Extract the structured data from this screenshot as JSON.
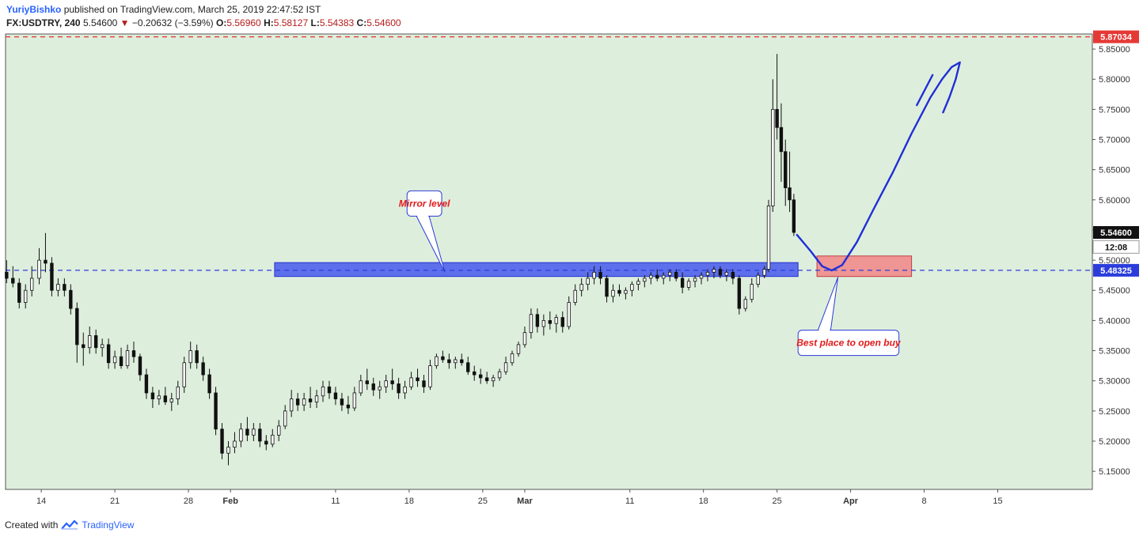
{
  "header": {
    "author": "YuriyBishko",
    "published": "published on TradingView.com, March 25, 2019 22:47:52 IST",
    "symbol": "FX:USDTRY, 240",
    "last": "5.54600",
    "change": "−0.20632 (−3.59%)",
    "o_label": "O:",
    "o_value": "5.56960",
    "h_label": "H:",
    "h_value": "5.58127",
    "l_label": "L:",
    "l_value": "5.54383",
    "c_label": "C:",
    "c_value": "5.54600"
  },
  "footer": {
    "created_with": "Created with",
    "brand": "TradingView"
  },
  "colors": {
    "background": "#deeedd",
    "candle": "#111111",
    "support_zone": "#3d4ff0",
    "buy_zone": "#ef8f8f",
    "red_line": "#e53935",
    "blue_line": "#2a3ddb",
    "arrow": "#1f2fd6"
  },
  "chart_data": {
    "type": "candlestick",
    "ylim": [
      5.12,
      5.875
    ],
    "y_ticks": [
      "5.15000",
      "5.20000",
      "5.25000",
      "5.30000",
      "5.35000",
      "5.40000",
      "5.45000",
      "5.50000",
      "5.55000",
      "5.60000",
      "5.65000",
      "5.70000",
      "5.75000",
      "5.80000",
      "5.85000"
    ],
    "x_ticks": [
      {
        "label": "14",
        "day": 14,
        "bold": false
      },
      {
        "label": "21",
        "day": 21,
        "bold": false
      },
      {
        "label": "28",
        "day": 28,
        "bold": false
      },
      {
        "label": "Feb",
        "day": 32,
        "bold": true
      },
      {
        "label": "11",
        "day": 42,
        "bold": false
      },
      {
        "label": "18",
        "day": 49,
        "bold": false
      },
      {
        "label": "25",
        "day": 56,
        "bold": false
      },
      {
        "label": "Mar",
        "day": 60,
        "bold": true
      },
      {
        "label": "11",
        "day": 70,
        "bold": false
      },
      {
        "label": "18",
        "day": 77,
        "bold": false
      },
      {
        "label": "25",
        "day": 84,
        "bold": false
      },
      {
        "label": "Apr",
        "day": 91,
        "bold": true
      },
      {
        "label": "8",
        "day": 98,
        "bold": false
      },
      {
        "label": "15",
        "day": 105,
        "bold": false
      }
    ],
    "x_day_range": [
      10.6,
      114.0
    ],
    "price_labels": [
      {
        "name": "resistance-price-label",
        "value": "5.87034",
        "price": 5.87034,
        "style": "red"
      },
      {
        "name": "last-price-label",
        "value": "5.54600",
        "price": 5.546,
        "style": "dark"
      },
      {
        "name": "countdown-label",
        "value": "12:08",
        "price": 5.522,
        "style": "dark-plain"
      },
      {
        "name": "support-price-label",
        "value": "5.48325",
        "price": 5.48325,
        "style": "blue"
      }
    ],
    "resistance_level": 5.87034,
    "mirror_level": 5.48325,
    "support_zone": {
      "day_from": 36.2,
      "day_to": 86.0,
      "price_high": 5.496,
      "price_low": 5.473
    },
    "buy_zone": {
      "day_from": 87.8,
      "day_to": 96.8,
      "price_high": 5.507,
      "price_low": 5.473
    },
    "callouts": [
      {
        "name": "mirror-level-callout",
        "text": "Mirror level",
        "day_from": 48.8,
        "day_to": 52.1,
        "price_top": 5.615,
        "price_bottom": 5.573,
        "tail_day": 50.3,
        "tip_day": 52.4,
        "tip_price": 5.48
      },
      {
        "name": "best-buy-callout",
        "text": "Best place to open buy",
        "day_from": 86.0,
        "day_to": 95.6,
        "price_top": 5.384,
        "price_bottom": 5.342,
        "tail_day": 88.5,
        "tip_day": 89.8,
        "tip_price": 5.472
      }
    ],
    "projection_path": [
      [
        85.9,
        5.542
      ],
      [
        87.2,
        5.515
      ],
      [
        88.3,
        5.49
      ],
      [
        89.2,
        5.483
      ],
      [
        90.2,
        5.492
      ],
      [
        91.6,
        5.53
      ],
      [
        93.2,
        5.585
      ],
      [
        95.0,
        5.645
      ],
      [
        96.8,
        5.71
      ],
      [
        98.6,
        5.77
      ],
      [
        99.7,
        5.8
      ],
      [
        100.6,
        5.82
      ],
      [
        101.4,
        5.828
      ],
      [
        101.0,
        5.8
      ],
      [
        100.4,
        5.77
      ],
      [
        99.8,
        5.745
      ]
    ],
    "projection_tick": [
      [
        98.8,
        5.807
      ],
      [
        97.3,
        5.757
      ]
    ],
    "series": [
      {
        "day": 10.7,
        "o": 5.48,
        "h": 5.5,
        "l": 5.462,
        "c": 5.47
      },
      {
        "day": 11.3,
        "o": 5.47,
        "h": 5.49,
        "l": 5.455,
        "c": 5.462
      },
      {
        "day": 11.9,
        "o": 5.462,
        "h": 5.47,
        "l": 5.42,
        "c": 5.43
      },
      {
        "day": 12.5,
        "o": 5.43,
        "h": 5.46,
        "l": 5.42,
        "c": 5.45
      },
      {
        "day": 13.1,
        "o": 5.45,
        "h": 5.49,
        "l": 5.44,
        "c": 5.47
      },
      {
        "day": 13.8,
        "o": 5.47,
        "h": 5.52,
        "l": 5.46,
        "c": 5.5
      },
      {
        "day": 14.4,
        "o": 5.5,
        "h": 5.545,
        "l": 5.48,
        "c": 5.495
      },
      {
        "day": 15.0,
        "o": 5.495,
        "h": 5.505,
        "l": 5.44,
        "c": 5.45
      },
      {
        "day": 15.6,
        "o": 5.45,
        "h": 5.47,
        "l": 5.44,
        "c": 5.46
      },
      {
        "day": 16.2,
        "o": 5.46,
        "h": 5.47,
        "l": 5.44,
        "c": 5.45
      },
      {
        "day": 16.8,
        "o": 5.45,
        "h": 5.46,
        "l": 5.41,
        "c": 5.42
      },
      {
        "day": 17.4,
        "o": 5.42,
        "h": 5.43,
        "l": 5.33,
        "c": 5.36
      },
      {
        "day": 18.0,
        "o": 5.36,
        "h": 5.38,
        "l": 5.325,
        "c": 5.355
      },
      {
        "day": 18.6,
        "o": 5.355,
        "h": 5.39,
        "l": 5.345,
        "c": 5.375
      },
      {
        "day": 19.2,
        "o": 5.375,
        "h": 5.385,
        "l": 5.345,
        "c": 5.355
      },
      {
        "day": 19.8,
        "o": 5.355,
        "h": 5.37,
        "l": 5.34,
        "c": 5.36
      },
      {
        "day": 20.4,
        "o": 5.36,
        "h": 5.37,
        "l": 5.32,
        "c": 5.33
      },
      {
        "day": 21.0,
        "o": 5.33,
        "h": 5.35,
        "l": 5.32,
        "c": 5.34
      },
      {
        "day": 21.6,
        "o": 5.34,
        "h": 5.355,
        "l": 5.32,
        "c": 5.325
      },
      {
        "day": 22.2,
        "o": 5.325,
        "h": 5.36,
        "l": 5.32,
        "c": 5.35
      },
      {
        "day": 22.8,
        "o": 5.35,
        "h": 5.365,
        "l": 5.33,
        "c": 5.34
      },
      {
        "day": 23.4,
        "o": 5.34,
        "h": 5.345,
        "l": 5.3,
        "c": 5.31
      },
      {
        "day": 24.0,
        "o": 5.31,
        "h": 5.32,
        "l": 5.27,
        "c": 5.28
      },
      {
        "day": 24.6,
        "o": 5.28,
        "h": 5.29,
        "l": 5.255,
        "c": 5.27
      },
      {
        "day": 25.2,
        "o": 5.27,
        "h": 5.285,
        "l": 5.26,
        "c": 5.275
      },
      {
        "day": 25.8,
        "o": 5.275,
        "h": 5.29,
        "l": 5.26,
        "c": 5.265
      },
      {
        "day": 26.4,
        "o": 5.265,
        "h": 5.28,
        "l": 5.25,
        "c": 5.27
      },
      {
        "day": 27.0,
        "o": 5.27,
        "h": 5.3,
        "l": 5.26,
        "c": 5.29
      },
      {
        "day": 27.6,
        "o": 5.29,
        "h": 5.34,
        "l": 5.28,
        "c": 5.33
      },
      {
        "day": 28.2,
        "o": 5.33,
        "h": 5.365,
        "l": 5.32,
        "c": 5.35
      },
      {
        "day": 28.8,
        "o": 5.35,
        "h": 5.36,
        "l": 5.32,
        "c": 5.33
      },
      {
        "day": 29.4,
        "o": 5.33,
        "h": 5.34,
        "l": 5.3,
        "c": 5.31
      },
      {
        "day": 30.0,
        "o": 5.31,
        "h": 5.32,
        "l": 5.27,
        "c": 5.28
      },
      {
        "day": 30.6,
        "o": 5.28,
        "h": 5.29,
        "l": 5.21,
        "c": 5.22
      },
      {
        "day": 31.2,
        "o": 5.22,
        "h": 5.23,
        "l": 5.17,
        "c": 5.18
      },
      {
        "day": 31.8,
        "o": 5.18,
        "h": 5.2,
        "l": 5.16,
        "c": 5.19
      },
      {
        "day": 32.4,
        "o": 5.19,
        "h": 5.215,
        "l": 5.18,
        "c": 5.2
      },
      {
        "day": 33.0,
        "o": 5.2,
        "h": 5.23,
        "l": 5.19,
        "c": 5.22
      },
      {
        "day": 33.6,
        "o": 5.22,
        "h": 5.24,
        "l": 5.2,
        "c": 5.21
      },
      {
        "day": 34.2,
        "o": 5.21,
        "h": 5.23,
        "l": 5.2,
        "c": 5.22
      },
      {
        "day": 34.8,
        "o": 5.22,
        "h": 5.23,
        "l": 5.19,
        "c": 5.2
      },
      {
        "day": 35.4,
        "o": 5.2,
        "h": 5.21,
        "l": 5.185,
        "c": 5.195
      },
      {
        "day": 36.0,
        "o": 5.195,
        "h": 5.22,
        "l": 5.19,
        "c": 5.21
      },
      {
        "day": 36.6,
        "o": 5.21,
        "h": 5.235,
        "l": 5.2,
        "c": 5.225
      },
      {
        "day": 37.2,
        "o": 5.225,
        "h": 5.26,
        "l": 5.22,
        "c": 5.25
      },
      {
        "day": 37.8,
        "o": 5.25,
        "h": 5.285,
        "l": 5.24,
        "c": 5.27
      },
      {
        "day": 38.4,
        "o": 5.27,
        "h": 5.28,
        "l": 5.25,
        "c": 5.26
      },
      {
        "day": 39.0,
        "o": 5.26,
        "h": 5.28,
        "l": 5.25,
        "c": 5.27
      },
      {
        "day": 39.6,
        "o": 5.27,
        "h": 5.29,
        "l": 5.255,
        "c": 5.265
      },
      {
        "day": 40.2,
        "o": 5.265,
        "h": 5.285,
        "l": 5.255,
        "c": 5.275
      },
      {
        "day": 40.8,
        "o": 5.275,
        "h": 5.3,
        "l": 5.265,
        "c": 5.29
      },
      {
        "day": 41.4,
        "o": 5.29,
        "h": 5.3,
        "l": 5.27,
        "c": 5.28
      },
      {
        "day": 42.0,
        "o": 5.28,
        "h": 5.29,
        "l": 5.26,
        "c": 5.27
      },
      {
        "day": 42.6,
        "o": 5.27,
        "h": 5.28,
        "l": 5.25,
        "c": 5.26
      },
      {
        "day": 43.2,
        "o": 5.26,
        "h": 5.275,
        "l": 5.245,
        "c": 5.255
      },
      {
        "day": 43.8,
        "o": 5.255,
        "h": 5.29,
        "l": 5.25,
        "c": 5.28
      },
      {
        "day": 44.4,
        "o": 5.28,
        "h": 5.31,
        "l": 5.275,
        "c": 5.3
      },
      {
        "day": 45.0,
        "o": 5.3,
        "h": 5.32,
        "l": 5.285,
        "c": 5.295
      },
      {
        "day": 45.6,
        "o": 5.295,
        "h": 5.305,
        "l": 5.275,
        "c": 5.285
      },
      {
        "day": 46.2,
        "o": 5.285,
        "h": 5.3,
        "l": 5.27,
        "c": 5.29
      },
      {
        "day": 46.8,
        "o": 5.29,
        "h": 5.31,
        "l": 5.28,
        "c": 5.3
      },
      {
        "day": 47.4,
        "o": 5.3,
        "h": 5.32,
        "l": 5.285,
        "c": 5.295
      },
      {
        "day": 48.0,
        "o": 5.295,
        "h": 5.305,
        "l": 5.27,
        "c": 5.28
      },
      {
        "day": 48.6,
        "o": 5.28,
        "h": 5.3,
        "l": 5.27,
        "c": 5.29
      },
      {
        "day": 49.2,
        "o": 5.29,
        "h": 5.315,
        "l": 5.285,
        "c": 5.305
      },
      {
        "day": 49.8,
        "o": 5.305,
        "h": 5.32,
        "l": 5.29,
        "c": 5.3
      },
      {
        "day": 50.4,
        "o": 5.3,
        "h": 5.31,
        "l": 5.28,
        "c": 5.29
      },
      {
        "day": 51.0,
        "o": 5.29,
        "h": 5.335,
        "l": 5.285,
        "c": 5.325
      },
      {
        "day": 51.6,
        "o": 5.325,
        "h": 5.345,
        "l": 5.32,
        "c": 5.34
      },
      {
        "day": 52.2,
        "o": 5.34,
        "h": 5.35,
        "l": 5.33,
        "c": 5.335
      },
      {
        "day": 52.8,
        "o": 5.335,
        "h": 5.345,
        "l": 5.32,
        "c": 5.33
      },
      {
        "day": 53.4,
        "o": 5.33,
        "h": 5.34,
        "l": 5.32,
        "c": 5.335
      },
      {
        "day": 54.0,
        "o": 5.335,
        "h": 5.345,
        "l": 5.325,
        "c": 5.33
      },
      {
        "day": 54.6,
        "o": 5.33,
        "h": 5.34,
        "l": 5.31,
        "c": 5.315
      },
      {
        "day": 55.2,
        "o": 5.315,
        "h": 5.325,
        "l": 5.3,
        "c": 5.31
      },
      {
        "day": 55.8,
        "o": 5.31,
        "h": 5.32,
        "l": 5.295,
        "c": 5.305
      },
      {
        "day": 56.4,
        "o": 5.305,
        "h": 5.315,
        "l": 5.295,
        "c": 5.3
      },
      {
        "day": 57.0,
        "o": 5.3,
        "h": 5.31,
        "l": 5.29,
        "c": 5.305
      },
      {
        "day": 57.6,
        "o": 5.305,
        "h": 5.32,
        "l": 5.3,
        "c": 5.315
      },
      {
        "day": 58.2,
        "o": 5.315,
        "h": 5.34,
        "l": 5.31,
        "c": 5.33
      },
      {
        "day": 58.8,
        "o": 5.33,
        "h": 5.35,
        "l": 5.325,
        "c": 5.345
      },
      {
        "day": 59.4,
        "o": 5.345,
        "h": 5.365,
        "l": 5.34,
        "c": 5.36
      },
      {
        "day": 60.0,
        "o": 5.36,
        "h": 5.39,
        "l": 5.355,
        "c": 5.38
      },
      {
        "day": 60.6,
        "o": 5.38,
        "h": 5.42,
        "l": 5.37,
        "c": 5.41
      },
      {
        "day": 61.2,
        "o": 5.41,
        "h": 5.42,
        "l": 5.38,
        "c": 5.39
      },
      {
        "day": 61.8,
        "o": 5.39,
        "h": 5.41,
        "l": 5.375,
        "c": 5.4
      },
      {
        "day": 62.4,
        "o": 5.4,
        "h": 5.415,
        "l": 5.385,
        "c": 5.395
      },
      {
        "day": 63.0,
        "o": 5.395,
        "h": 5.41,
        "l": 5.38,
        "c": 5.405
      },
      {
        "day": 63.6,
        "o": 5.405,
        "h": 5.415,
        "l": 5.38,
        "c": 5.39
      },
      {
        "day": 64.2,
        "o": 5.39,
        "h": 5.44,
        "l": 5.385,
        "c": 5.43
      },
      {
        "day": 64.8,
        "o": 5.43,
        "h": 5.46,
        "l": 5.425,
        "c": 5.45
      },
      {
        "day": 65.4,
        "o": 5.45,
        "h": 5.47,
        "l": 5.44,
        "c": 5.46
      },
      {
        "day": 66.0,
        "o": 5.46,
        "h": 5.48,
        "l": 5.45,
        "c": 5.47
      },
      {
        "day": 66.6,
        "o": 5.47,
        "h": 5.49,
        "l": 5.46,
        "c": 5.48
      },
      {
        "day": 67.2,
        "o": 5.48,
        "h": 5.49,
        "l": 5.46,
        "c": 5.47
      },
      {
        "day": 67.8,
        "o": 5.47,
        "h": 5.475,
        "l": 5.43,
        "c": 5.44
      },
      {
        "day": 68.4,
        "o": 5.44,
        "h": 5.46,
        "l": 5.43,
        "c": 5.45
      },
      {
        "day": 69.0,
        "o": 5.45,
        "h": 5.46,
        "l": 5.44,
        "c": 5.445
      },
      {
        "day": 69.6,
        "o": 5.445,
        "h": 5.455,
        "l": 5.435,
        "c": 5.45
      },
      {
        "day": 70.2,
        "o": 5.45,
        "h": 5.465,
        "l": 5.44,
        "c": 5.46
      },
      {
        "day": 70.8,
        "o": 5.46,
        "h": 5.47,
        "l": 5.45,
        "c": 5.465
      },
      {
        "day": 71.4,
        "o": 5.465,
        "h": 5.475,
        "l": 5.455,
        "c": 5.47
      },
      {
        "day": 72.0,
        "o": 5.47,
        "h": 5.48,
        "l": 5.46,
        "c": 5.475
      },
      {
        "day": 72.6,
        "o": 5.475,
        "h": 5.485,
        "l": 5.465,
        "c": 5.47
      },
      {
        "day": 73.2,
        "o": 5.47,
        "h": 5.48,
        "l": 5.46,
        "c": 5.475
      },
      {
        "day": 73.8,
        "o": 5.475,
        "h": 5.485,
        "l": 5.465,
        "c": 5.48
      },
      {
        "day": 74.4,
        "o": 5.48,
        "h": 5.485,
        "l": 5.465,
        "c": 5.47
      },
      {
        "day": 75.0,
        "o": 5.47,
        "h": 5.48,
        "l": 5.445,
        "c": 5.455
      },
      {
        "day": 75.6,
        "o": 5.455,
        "h": 5.47,
        "l": 5.45,
        "c": 5.465
      },
      {
        "day": 76.2,
        "o": 5.465,
        "h": 5.475,
        "l": 5.455,
        "c": 5.47
      },
      {
        "day": 76.8,
        "o": 5.47,
        "h": 5.48,
        "l": 5.46,
        "c": 5.475
      },
      {
        "day": 77.4,
        "o": 5.475,
        "h": 5.485,
        "l": 5.465,
        "c": 5.48
      },
      {
        "day": 78.0,
        "o": 5.48,
        "h": 5.49,
        "l": 5.47,
        "c": 5.485
      },
      {
        "day": 78.6,
        "o": 5.485,
        "h": 5.49,
        "l": 5.47,
        "c": 5.475
      },
      {
        "day": 79.2,
        "o": 5.475,
        "h": 5.485,
        "l": 5.465,
        "c": 5.48
      },
      {
        "day": 79.8,
        "o": 5.48,
        "h": 5.485,
        "l": 5.46,
        "c": 5.47
      },
      {
        "day": 80.4,
        "o": 5.47,
        "h": 5.475,
        "l": 5.41,
        "c": 5.42
      },
      {
        "day": 81.0,
        "o": 5.42,
        "h": 5.44,
        "l": 5.415,
        "c": 5.435
      },
      {
        "day": 81.6,
        "o": 5.435,
        "h": 5.47,
        "l": 5.43,
        "c": 5.46
      },
      {
        "day": 82.2,
        "o": 5.46,
        "h": 5.48,
        "l": 5.455,
        "c": 5.475
      },
      {
        "day": 82.8,
        "o": 5.475,
        "h": 5.49,
        "l": 5.47,
        "c": 5.485
      },
      {
        "day": 83.2,
        "o": 5.485,
        "h": 5.6,
        "l": 5.48,
        "c": 5.59
      },
      {
        "day": 83.6,
        "o": 5.59,
        "h": 5.8,
        "l": 5.58,
        "c": 5.75
      },
      {
        "day": 84.0,
        "o": 5.75,
        "h": 5.842,
        "l": 5.7,
        "c": 5.72
      },
      {
        "day": 84.4,
        "o": 5.72,
        "h": 5.76,
        "l": 5.63,
        "c": 5.68
      },
      {
        "day": 84.8,
        "o": 5.68,
        "h": 5.7,
        "l": 5.59,
        "c": 5.62
      },
      {
        "day": 85.2,
        "o": 5.62,
        "h": 5.68,
        "l": 5.58,
        "c": 5.6
      },
      {
        "day": 85.6,
        "o": 5.6,
        "h": 5.61,
        "l": 5.54,
        "c": 5.546
      }
    ]
  }
}
